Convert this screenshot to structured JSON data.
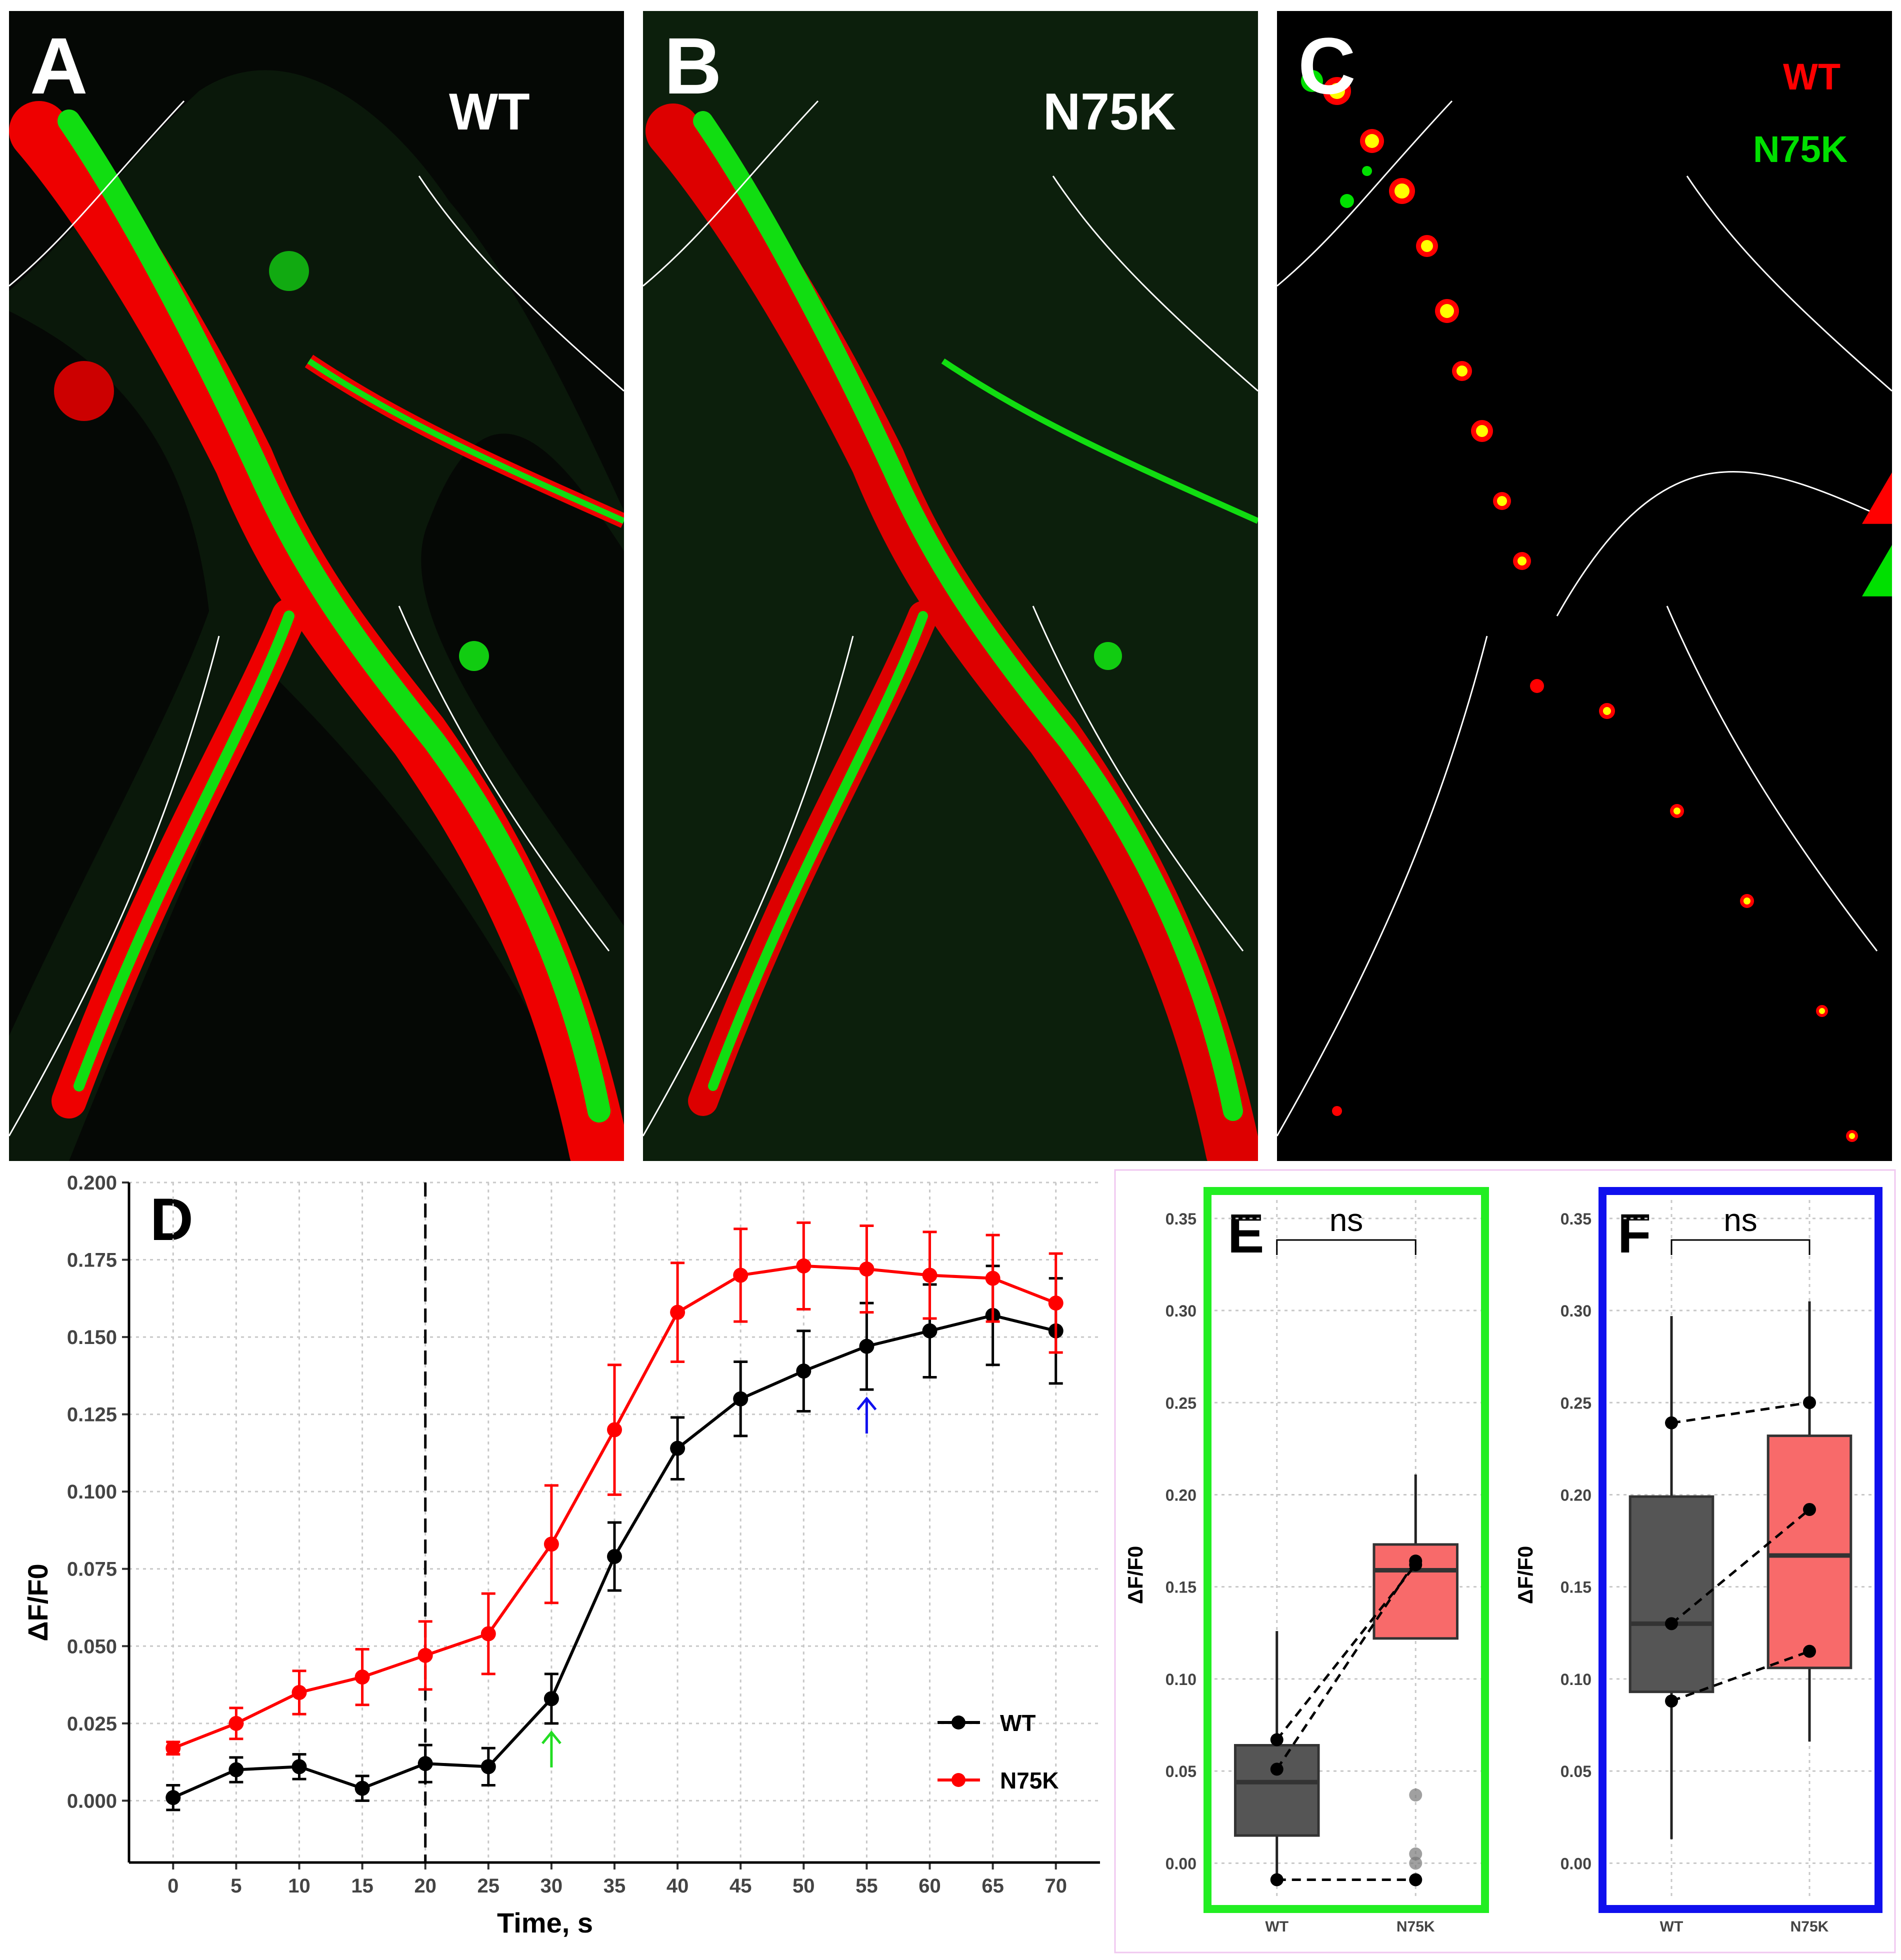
{
  "panels": {
    "a": {
      "letter": "A",
      "label": "WT"
    },
    "b": {
      "letter": "B",
      "label": "N75K"
    },
    "c": {
      "letter": "C",
      "legend": [
        {
          "text": "WT",
          "color": "#ff0000"
        },
        {
          "text": "N75K",
          "color": "#00e000"
        }
      ]
    }
  },
  "colors": {
    "red": "#ff0000",
    "green": "#00e000",
    "yellow": "#ffff00",
    "wt_line": "#000000",
    "n75k_line": "#ff0000",
    "box_wt": "#555555",
    "box_n75k": "#f86a6a",
    "frame_e": "#22ee22",
    "frame_f": "#1010ee",
    "arrow_green": "#22dd22",
    "arrow_blue": "#1010ee"
  },
  "chart_data": [
    {
      "panel": "D",
      "type": "line",
      "xlabel": "Time, s",
      "ylabel": "ΔF/F0",
      "x": [
        0,
        5,
        10,
        15,
        20,
        25,
        30,
        35,
        40,
        45,
        50,
        55,
        60,
        65,
        70
      ],
      "xlim": [
        -3.5,
        73.5
      ],
      "ylim": [
        -0.02,
        0.2
      ],
      "yticks": [
        "0.000",
        "0.025",
        "0.050",
        "0.075",
        "0.100",
        "0.125",
        "0.150",
        "0.175",
        "0.200"
      ],
      "vline_x": 20,
      "arrows": [
        {
          "x": 30,
          "color": "green"
        },
        {
          "x": 55,
          "color": "blue"
        }
      ],
      "legend_position": "bottom-right",
      "grid": true,
      "series": [
        {
          "name": "WT",
          "color": "#000000",
          "values": [
            0.001,
            0.01,
            0.011,
            0.004,
            0.012,
            0.011,
            0.033,
            0.079,
            0.114,
            0.13,
            0.139,
            0.147,
            0.152,
            0.157,
            0.152
          ],
          "errors": [
            0.004,
            0.004,
            0.004,
            0.004,
            0.006,
            0.006,
            0.008,
            0.011,
            0.01,
            0.012,
            0.013,
            0.014,
            0.015,
            0.016,
            0.017
          ]
        },
        {
          "name": "N75K",
          "color": "#ff0000",
          "values": [
            0.017,
            0.025,
            0.035,
            0.04,
            0.047,
            0.054,
            0.083,
            0.12,
            0.158,
            0.17,
            0.173,
            0.172,
            0.17,
            0.169,
            0.161
          ],
          "errors": [
            0.002,
            0.005,
            0.007,
            0.009,
            0.011,
            0.013,
            0.019,
            0.021,
            0.016,
            0.015,
            0.014,
            0.014,
            0.014,
            0.014,
            0.016
          ]
        }
      ]
    },
    {
      "panel": "E",
      "type": "box",
      "ylabel": "ΔF/F0",
      "categories": [
        "WT",
        "N75K"
      ],
      "ylim": [
        -0.02,
        0.36
      ],
      "yticks": [
        "0.00",
        "0.05",
        "0.10",
        "0.15",
        "0.20",
        "0.25",
        "0.30",
        "0.35"
      ],
      "significance": "ns",
      "boxes": [
        {
          "name": "WT",
          "q1": 0.015,
          "median": 0.044,
          "q3": 0.064,
          "whisker_low": -0.009,
          "whisker_high": 0.126,
          "outliers": []
        },
        {
          "name": "N75K",
          "q1": 0.122,
          "median": 0.159,
          "q3": 0.173,
          "whisker_low": 0.122,
          "whisker_high": 0.211,
          "outliers": [
            0.037,
            0.005,
            0.0,
            -0.009
          ]
        }
      ],
      "paired_points": [
        [
          0.067,
          0.162
        ],
        [
          0.051,
          0.164
        ],
        [
          -0.009,
          -0.009
        ]
      ]
    },
    {
      "panel": "F",
      "type": "box",
      "ylabel": "ΔF/F0",
      "categories": [
        "WT",
        "N75K"
      ],
      "ylim": [
        -0.02,
        0.36
      ],
      "yticks": [
        "0.00",
        "0.05",
        "0.10",
        "0.15",
        "0.20",
        "0.25",
        "0.30",
        "0.35"
      ],
      "significance": "ns",
      "boxes": [
        {
          "name": "WT",
          "q1": 0.093,
          "median": 0.13,
          "q3": 0.199,
          "whisker_low": 0.013,
          "whisker_high": 0.297,
          "outliers": []
        },
        {
          "name": "N75K",
          "q1": 0.106,
          "median": 0.167,
          "q3": 0.232,
          "whisker_low": 0.066,
          "whisker_high": 0.305,
          "outliers": []
        }
      ],
      "paired_points": [
        [
          0.239,
          0.25
        ],
        [
          0.13,
          0.192
        ],
        [
          0.088,
          0.115
        ]
      ]
    }
  ]
}
